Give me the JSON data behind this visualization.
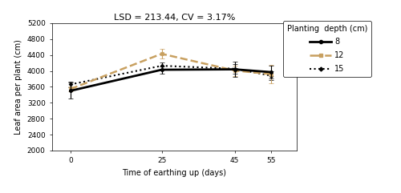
{
  "title": "LSD = 213.44, CV = 3.17%",
  "xlabel": "Time of earthing up (days)",
  "ylabel": "Leaf area per plant (cm)",
  "x": [
    0,
    25,
    45,
    55
  ],
  "series": {
    "8": {
      "y": [
        3500,
        4030,
        4040,
        3970
      ],
      "yerr": [
        200,
        90,
        190,
        160
      ],
      "color": "#000000",
      "linestyle": "-",
      "linewidth": 2.0,
      "marker": "o",
      "markersize": 3
    },
    "12": {
      "y": [
        3545,
        4430,
        4010,
        3920
      ],
      "yerr": [
        60,
        115,
        130,
        230
      ],
      "color": "#c8a060",
      "linestyle": "--",
      "linewidth": 1.8,
      "marker": "s",
      "markersize": 3
    },
    "15": {
      "y": [
        3660,
        4130,
        4055,
        3880
      ],
      "yerr": [
        75,
        85,
        125,
        120
      ],
      "color": "#000000",
      "linestyle": ":",
      "linewidth": 1.5,
      "marker": "D",
      "markersize": 2.5
    }
  },
  "legend_title": "Planting  depth (cm)",
  "ylim": [
    2000,
    5200
  ],
  "yticks": [
    2000,
    2400,
    2800,
    3200,
    3600,
    4000,
    4400,
    4800,
    5200
  ],
  "xticks": [
    0,
    25,
    45,
    55
  ],
  "title_fontsize": 8,
  "axis_label_fontsize": 7,
  "tick_fontsize": 6.5,
  "legend_fontsize": 7
}
